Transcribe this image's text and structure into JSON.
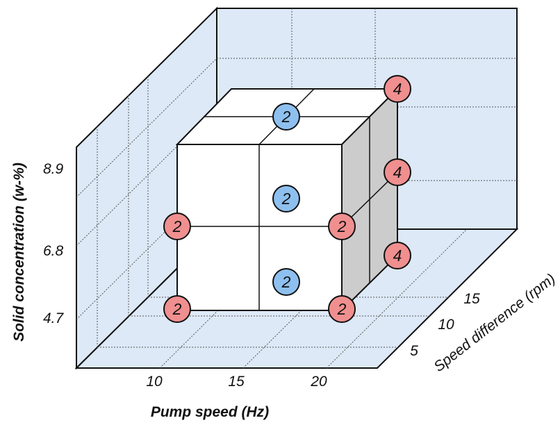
{
  "axes": {
    "x": {
      "title": "Pump speed (Hz)",
      "ticks": [
        "10",
        "15",
        "20"
      ]
    },
    "y": {
      "title": "Speed difference (rpm)",
      "ticks": [
        "5",
        "10",
        "15"
      ]
    },
    "z": {
      "title": "Solid concentration (w-%)",
      "ticks": [
        "4.7",
        "6.8",
        "8.9"
      ]
    }
  },
  "colors": {
    "wall": "#dde9f7",
    "red_node": "#f08f8f",
    "blue_node": "#8ec0ef",
    "shaded_face": "#cccccc"
  },
  "nodes": [
    {
      "label": "4",
      "color": "red",
      "point": "top-back-right"
    },
    {
      "label": "4",
      "color": "red",
      "point": "mid-back-right"
    },
    {
      "label": "4",
      "color": "red",
      "point": "bottom-back-right"
    },
    {
      "label": "2",
      "color": "blue",
      "point": "top-face-center"
    },
    {
      "label": "2",
      "color": "blue",
      "point": "center"
    },
    {
      "label": "2",
      "color": "blue",
      "point": "bottom-face-center"
    },
    {
      "label": "2",
      "color": "red",
      "point": "mid-front-left"
    },
    {
      "label": "2",
      "color": "red",
      "point": "mid-front-right"
    },
    {
      "label": "2",
      "color": "red",
      "point": "bottom-front-left"
    },
    {
      "label": "2",
      "color": "red",
      "point": "bottom-front-right"
    }
  ]
}
